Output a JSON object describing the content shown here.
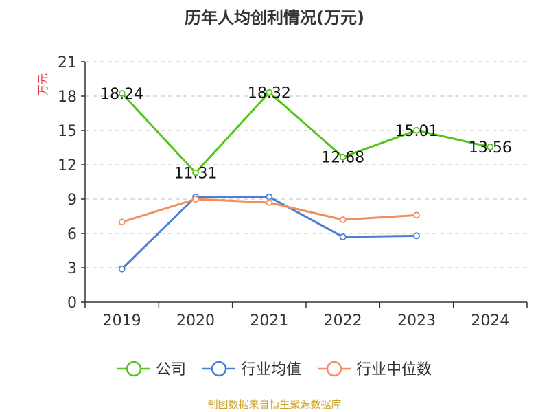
{
  "chart_data": {
    "type": "line",
    "title": "历年人均创利情况(万元)",
    "ylabel": "万元",
    "xlabel": "",
    "categories": [
      "2019",
      "2020",
      "2021",
      "2022",
      "2023",
      "2024"
    ],
    "ylim": [
      0,
      21
    ],
    "yticks": [
      0,
      3,
      6,
      9,
      12,
      15,
      18,
      21
    ],
    "grid": true,
    "legend_position": "bottom",
    "series": [
      {
        "name": "公司",
        "color": "#52c41a",
        "values": [
          18.24,
          11.31,
          18.32,
          12.68,
          15.01,
          13.56
        ],
        "labels": [
          "18.24",
          "11.31",
          "18.32",
          "12.68",
          "15.01",
          "13.56"
        ]
      },
      {
        "name": "行业均值",
        "color": "#4a7fd8",
        "values": [
          2.9,
          9.2,
          9.2,
          5.7,
          5.8,
          null
        ]
      },
      {
        "name": "行业中位数",
        "color": "#f28e5b",
        "values": [
          7.0,
          9.0,
          8.7,
          7.2,
          7.6,
          null
        ]
      }
    ]
  },
  "footer": {
    "source": "制图数据来自恒生聚源数据库"
  }
}
